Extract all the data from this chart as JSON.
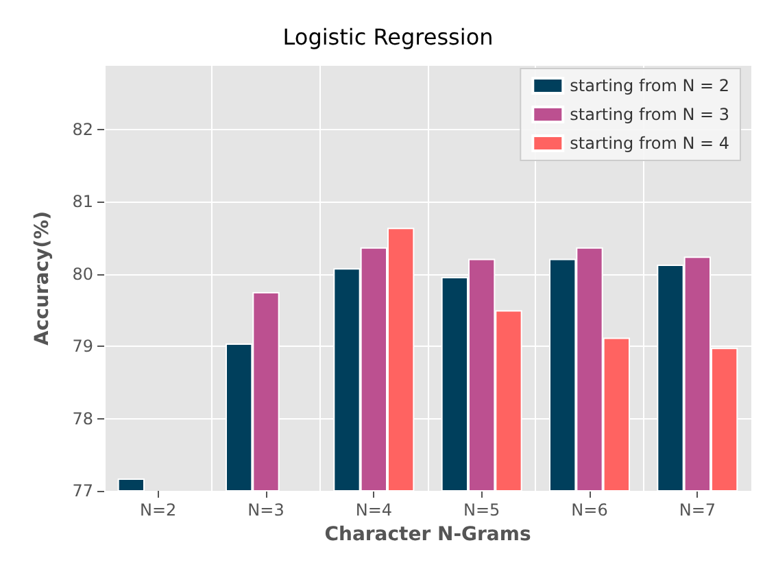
{
  "chart_data": {
    "type": "bar",
    "title": "Logistic Regression",
    "xlabel": "Character N-Grams",
    "ylabel": "Accuracy(%)",
    "categories": [
      "N=2",
      "N=3",
      "N=4",
      "N=5",
      "N=6",
      "N=7"
    ],
    "series": [
      {
        "name": "starting from N = 2",
        "color": "#003f5c",
        "values": [
          77.17,
          79.04,
          80.08,
          79.96,
          80.21,
          80.13
        ]
      },
      {
        "name": "starting from N = 3",
        "color": "#bc5090",
        "values": [
          null,
          79.75,
          80.37,
          80.21,
          80.37,
          80.24
        ]
      },
      {
        "name": "starting from N = 4",
        "color": "#ff6361",
        "values": [
          null,
          null,
          80.64,
          79.5,
          79.12,
          78.98
        ]
      }
    ],
    "ylim": [
      77,
      82.88
    ],
    "yticks": [
      77,
      78,
      79,
      80,
      81,
      82
    ],
    "grid": true,
    "legend": "top right"
  }
}
